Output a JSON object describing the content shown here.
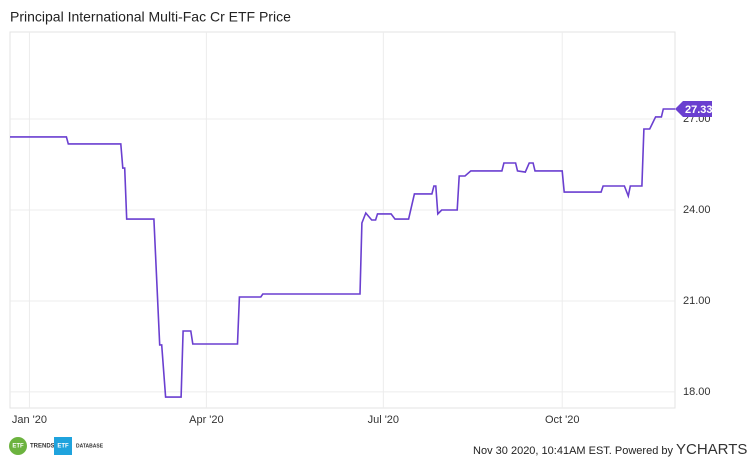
{
  "chart_data": {
    "type": "line",
    "title": "Principal International Multi-Fac Cr ETF Price",
    "x": [
      -10,
      19,
      20,
      47,
      48,
      49,
      50,
      64,
      67,
      68,
      70,
      78,
      79,
      83,
      84,
      107,
      108,
      119,
      120,
      170,
      171,
      173,
      176,
      178,
      179,
      186,
      188,
      195,
      198,
      207,
      208,
      209,
      210,
      212,
      220,
      221,
      224,
      227,
      243,
      244,
      250,
      251,
      255,
      257,
      259,
      260,
      274,
      275,
      294,
      295,
      306,
      308,
      309,
      315,
      316,
      319,
      322,
      325,
      326,
      332
    ],
    "values": [
      26.41,
      26.41,
      26.18,
      26.18,
      25.38,
      25.38,
      23.7,
      23.7,
      19.55,
      19.55,
      17.83,
      17.83,
      20.01,
      20.01,
      19.58,
      19.58,
      21.13,
      21.13,
      21.23,
      21.23,
      23.57,
      23.9,
      23.67,
      23.67,
      23.87,
      23.87,
      23.7,
      23.7,
      24.53,
      24.53,
      24.79,
      24.79,
      23.87,
      24.0,
      24.0,
      25.12,
      25.12,
      25.29,
      25.29,
      25.55,
      25.55,
      25.29,
      25.25,
      25.55,
      25.55,
      25.29,
      25.29,
      24.59,
      24.59,
      24.79,
      24.79,
      24.46,
      24.79,
      24.79,
      26.67,
      26.67,
      27.07,
      27.07,
      27.33,
      27.33
    ],
    "color": "#6a3fd0",
    "current_value": 27.33,
    "xlim": [
      -10,
      332
    ],
    "xticks": [
      {
        "value": 0,
        "label": "Jan '20"
      },
      {
        "value": 91,
        "label": "Apr '20"
      },
      {
        "value": 182,
        "label": "Jul '20"
      },
      {
        "value": 274,
        "label": "Oct '20"
      }
    ],
    "ylim": [
      17.47,
      29.87
    ],
    "yticks": [
      {
        "value": 18,
        "label": "18.00"
      },
      {
        "value": 21,
        "label": "21.00"
      },
      {
        "value": 24,
        "label": "24.00"
      },
      {
        "value": 27,
        "label": "27.00"
      }
    ],
    "grid": true
  },
  "footer": {
    "logo1_badge": "ETF",
    "logo1_text": "TRENDS",
    "logo2_badge": "ETF",
    "logo2_text": "DATABASE",
    "timestamp": "Nov 30 2020, 10:41AM EST. Powered by",
    "brand": "YCHARTS"
  }
}
